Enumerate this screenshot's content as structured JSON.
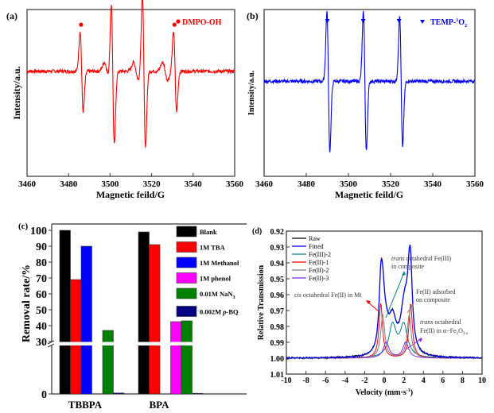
{
  "chart_data": [
    {
      "panel": "(a)",
      "type": "line",
      "title": "",
      "xlabel": "Magnetic feild/G",
      "ylabel": "Intensity/a.u.",
      "xlim": [
        3460,
        3560
      ],
      "xticks": [
        3460,
        3480,
        3500,
        3520,
        3540,
        3560
      ],
      "color": "#ff0000",
      "legend": [
        {
          "label": "DMPO-OH",
          "marker": "circle",
          "color": "#ff0000"
        }
      ],
      "legend_position": "top-right",
      "marker_positions_x": [
        3486,
        3501,
        3516,
        3531
      ],
      "peaks": [
        {
          "x": 3486.3,
          "amp": 0.55
        },
        {
          "x": 3501.3,
          "amp": 1.0
        },
        {
          "x": 3516.3,
          "amp": 1.05
        },
        {
          "x": 3531.3,
          "amp": 0.55
        }
      ],
      "minor_peaks": [
        3498.5,
        3512.5,
        3526.5
      ]
    },
    {
      "panel": "(b)",
      "type": "line",
      "title": "",
      "xlabel": "Magnetic feild/G",
      "ylabel": "Intensity/a.u.",
      "xlim": [
        3460,
        3560
      ],
      "xticks": [
        3460,
        3480,
        3500,
        3520,
        3540,
        3560
      ],
      "color": "#0000ff",
      "legend": [
        {
          "label": "TEMP-",
          "sup": "1",
          "tail": "O",
          "sub": "2",
          "marker": "triangle-down",
          "color": "#0000ff"
        }
      ],
      "legend_position": "top-right",
      "marker_positions_x": [
        3490,
        3507,
        3524
      ],
      "peaks": [
        {
          "x": 3490.5,
          "amp": 1.0
        },
        {
          "x": 3507.8,
          "amp": 1.0
        },
        {
          "x": 3525.0,
          "amp": 0.93
        }
      ]
    },
    {
      "panel": "(c)",
      "type": "bar",
      "title": "",
      "xlabel": "",
      "ylabel": "Removal rate/%",
      "categories": [
        "TBBPA",
        "BPA"
      ],
      "yticks": [
        0,
        30,
        40,
        50,
        60,
        70,
        80,
        90,
        100
      ],
      "ylim": [
        0,
        100
      ],
      "axis_break": [
        0,
        30
      ],
      "legend_position": "top-right",
      "series": [
        {
          "name": "Blank",
          "color": "#000000",
          "values": [
            100,
            99
          ]
        },
        {
          "name": "1M TBA",
          "color": "#ff0000",
          "values": [
            69,
            91
          ]
        },
        {
          "name": "1M Methanol",
          "color": "#0000ff",
          "values": [
            90,
            null
          ]
        },
        {
          "name": "1M phenol",
          "color": "#ff00ff",
          "values": [
            null,
            42.5
          ]
        },
        {
          "name": "0.01M NaN",
          "sub": "3",
          "color": "#008000",
          "values": [
            37,
            43
          ]
        },
        {
          "name": "0.002M ",
          "italic": "p",
          "tail": "-BQ",
          "color": "#000080",
          "values": [
            0.6,
            0.4
          ]
        }
      ]
    },
    {
      "panel": "(d)",
      "type": "line",
      "title": "",
      "xlabel": "Velocity (mm·s",
      "xlabel_sup": "-1",
      "xlabel_tail": ")",
      "ylabel": "Relative Transmission",
      "xlim": [
        -10,
        10
      ],
      "ylim": [
        0.92,
        1.01
      ],
      "y_inverted": true,
      "xticks": [
        -10,
        -8,
        -6,
        -4,
        -2,
        0,
        2,
        4,
        6,
        8,
        10
      ],
      "yticks": [
        "0.92",
        "0.93",
        "0.94",
        "0.95",
        "0.96",
        "0.97",
        "0.98",
        "0.99",
        "1.00",
        "1.01"
      ],
      "legend_position": "top-left",
      "series": [
        {
          "name": "Raw",
          "color": "#000000"
        },
        {
          "name": "Fitted",
          "color": "#0000ff"
        },
        {
          "name": "Fe(III)-2",
          "color": "#008080",
          "doublet": [
            0.85,
            2.0
          ],
          "depth": 0.02
        },
        {
          "name": "Fe(II)-1",
          "color": "#ff0000",
          "doublet": [
            -0.35,
            2.7
          ],
          "depth": 0.034
        },
        {
          "name": "Fe(II)-2",
          "color": "#808080",
          "doublet": [
            -0.15,
            2.55
          ],
          "depth": 0.027
        },
        {
          "name": "Fe(II)-3",
          "color": "#8a2be2",
          "doublet": [
            0.2,
            2.2
          ],
          "depth": 0.01
        }
      ],
      "annotations": [
        {
          "italic": "trans",
          "text": " octahedral Fe(III)",
          "line2": "in composite",
          "color": "#008080"
        },
        {
          "text": "Fe(II) adsorbed",
          "line2": "on composite",
          "color": "#808080"
        },
        {
          "italic": "cis",
          "text": " octahedral Fe(II) in Mt",
          "color": "#ff0000"
        },
        {
          "italic": "trans",
          "text": " octahedral",
          "line2": "Fe(II) in α−Fe",
          "line2_sub": "2",
          "line2_mid": "O",
          "line2_sub2": "3-x",
          "color": "#8a2be2"
        }
      ]
    }
  ]
}
